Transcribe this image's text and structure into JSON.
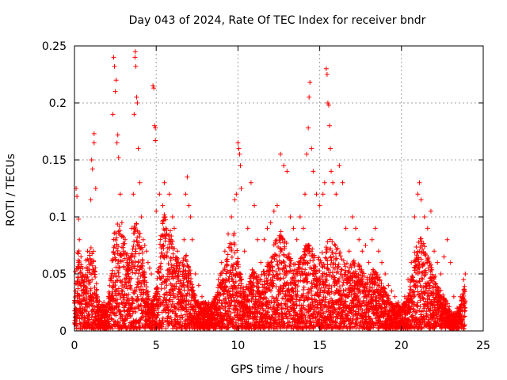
{
  "chart_data": {
    "type": "scatter",
    "title": "Day 043 of 2024, Rate Of TEC Index for receiver bndr",
    "xlabel": "GPS time / hours",
    "ylabel": "ROTI / TECUs",
    "xlim": [
      0,
      25
    ],
    "ylim": [
      0,
      0.25
    ],
    "x_ticks": [
      "0",
      "5",
      "10",
      "15",
      "20",
      "25"
    ],
    "y_ticks": [
      "0",
      "0.05",
      "0.1",
      "0.15",
      "0.2",
      "0.25"
    ],
    "grid": true,
    "marker": "+",
    "colors": {
      "points": "#ff0000",
      "grid": "#a0a0a0",
      "axes": "#000000"
    },
    "series": [
      {
        "name": "",
        "points": [
          [
            0.05,
            0.052
          ],
          [
            0.1,
            0.125
          ],
          [
            0.15,
            0.118
          ],
          [
            0.25,
            0.098
          ],
          [
            0.3,
            0.08
          ],
          [
            0.4,
            0.065
          ],
          [
            0.5,
            0.055
          ],
          [
            0.6,
            0.045
          ],
          [
            0.7,
            0.062
          ],
          [
            0.8,
            0.07
          ],
          [
            0.9,
            0.058
          ],
          [
            1.0,
            0.115
          ],
          [
            1.05,
            0.15
          ],
          [
            1.1,
            0.142
          ],
          [
            1.2,
            0.173
          ],
          [
            1.2,
            0.165
          ],
          [
            1.3,
            0.125
          ],
          [
            1.4,
            0.03
          ],
          [
            1.6,
            0.018
          ],
          [
            1.8,
            0.025
          ],
          [
            2.0,
            0.012
          ],
          [
            2.2,
            0.028
          ],
          [
            2.35,
            0.19
          ],
          [
            2.4,
            0.24
          ],
          [
            2.45,
            0.232
          ],
          [
            2.5,
            0.21
          ],
          [
            2.55,
            0.22
          ],
          [
            2.6,
            0.165
          ],
          [
            2.65,
            0.172
          ],
          [
            2.7,
            0.152
          ],
          [
            2.8,
            0.12
          ],
          [
            2.9,
            0.095
          ],
          [
            3.0,
            0.07
          ],
          [
            3.1,
            0.08
          ],
          [
            3.2,
            0.06
          ],
          [
            3.3,
            0.05
          ],
          [
            3.4,
            0.04
          ],
          [
            3.5,
            0.09
          ],
          [
            3.6,
            0.12
          ],
          [
            3.65,
            0.19
          ],
          [
            3.7,
            0.24
          ],
          [
            3.72,
            0.245
          ],
          [
            3.75,
            0.232
          ],
          [
            3.8,
            0.205
          ],
          [
            3.85,
            0.2
          ],
          [
            3.9,
            0.16
          ],
          [
            4.0,
            0.13
          ],
          [
            4.1,
            0.1
          ],
          [
            4.2,
            0.08
          ],
          [
            4.3,
            0.075
          ],
          [
            4.4,
            0.07
          ],
          [
            4.5,
            0.06
          ],
          [
            4.6,
            0.055
          ],
          [
            4.7,
            0.05
          ],
          [
            4.8,
            0.215
          ],
          [
            4.85,
            0.213
          ],
          [
            4.9,
            0.18
          ],
          [
            4.95,
            0.178
          ],
          [
            4.95,
            0.167
          ],
          [
            5.0,
            0.105
          ],
          [
            5.2,
            0.12
          ],
          [
            5.4,
            0.11
          ],
          [
            5.5,
            0.13
          ],
          [
            5.6,
            0.09
          ],
          [
            5.8,
            0.12
          ],
          [
            6.0,
            0.1
          ],
          [
            6.1,
            0.09
          ],
          [
            6.3,
            0.07
          ],
          [
            6.5,
            0.06
          ],
          [
            6.7,
            0.08
          ],
          [
            6.8,
            0.12
          ],
          [
            6.9,
            0.135
          ],
          [
            7.0,
            0.11
          ],
          [
            7.1,
            0.1
          ],
          [
            7.2,
            0.08
          ],
          [
            7.4,
            0.05
          ],
          [
            7.6,
            0.04
          ],
          [
            7.8,
            0.03
          ],
          [
            8.0,
            0.025
          ],
          [
            8.3,
            0.02
          ],
          [
            8.6,
            0.03
          ],
          [
            8.8,
            0.045
          ],
          [
            9.0,
            0.06
          ],
          [
            9.2,
            0.07
          ],
          [
            9.4,
            0.085
          ],
          [
            9.6,
            0.1
          ],
          [
            9.8,
            0.115
          ],
          [
            9.9,
            0.12
          ],
          [
            10.0,
            0.165
          ],
          [
            10.05,
            0.16
          ],
          [
            10.1,
            0.155
          ],
          [
            10.15,
            0.145
          ],
          [
            10.2,
            0.125
          ],
          [
            10.4,
            0.07
          ],
          [
            10.6,
            0.09
          ],
          [
            10.8,
            0.13
          ],
          [
            11.0,
            0.11
          ],
          [
            11.2,
            0.08
          ],
          [
            11.4,
            0.06
          ],
          [
            11.6,
            0.08
          ],
          [
            11.8,
            0.09
          ],
          [
            12.0,
            0.095
          ],
          [
            12.2,
            0.105
          ],
          [
            12.4,
            0.11
          ],
          [
            12.6,
            0.155
          ],
          [
            12.8,
            0.145
          ],
          [
            13.0,
            0.14
          ],
          [
            13.2,
            0.1
          ],
          [
            13.4,
            0.09
          ],
          [
            13.6,
            0.08
          ],
          [
            13.8,
            0.1
          ],
          [
            14.0,
            0.09
          ],
          [
            14.1,
            0.12
          ],
          [
            14.2,
            0.155
          ],
          [
            14.3,
            0.178
          ],
          [
            14.35,
            0.205
          ],
          [
            14.4,
            0.218
          ],
          [
            14.5,
            0.16
          ],
          [
            14.6,
            0.14
          ],
          [
            14.8,
            0.12
          ],
          [
            15.0,
            0.11
          ],
          [
            15.2,
            0.12
          ],
          [
            15.3,
            0.13
          ],
          [
            15.4,
            0.23
          ],
          [
            15.45,
            0.225
          ],
          [
            15.5,
            0.2
          ],
          [
            15.55,
            0.198
          ],
          [
            15.6,
            0.18
          ],
          [
            15.65,
            0.16
          ],
          [
            15.7,
            0.14
          ],
          [
            15.8,
            0.13
          ],
          [
            16.0,
            0.12
          ],
          [
            16.2,
            0.145
          ],
          [
            16.4,
            0.13
          ],
          [
            16.6,
            0.09
          ],
          [
            16.8,
            0.07
          ],
          [
            17.0,
            0.1
          ],
          [
            17.2,
            0.09
          ],
          [
            17.4,
            0.08
          ],
          [
            17.6,
            0.07
          ],
          [
            17.8,
            0.075
          ],
          [
            18.0,
            0.06
          ],
          [
            18.2,
            0.08
          ],
          [
            18.4,
            0.09
          ],
          [
            18.6,
            0.07
          ],
          [
            18.8,
            0.06
          ],
          [
            19.0,
            0.05
          ],
          [
            19.2,
            0.04
          ],
          [
            19.4,
            0.035
          ],
          [
            19.6,
            0.03
          ],
          [
            19.8,
            0.025
          ],
          [
            20.0,
            0.02
          ],
          [
            20.2,
            0.03
          ],
          [
            20.4,
            0.045
          ],
          [
            20.6,
            0.06
          ],
          [
            20.8,
            0.1
          ],
          [
            21.0,
            0.12
          ],
          [
            21.1,
            0.13
          ],
          [
            21.2,
            0.115
          ],
          [
            21.4,
            0.1
          ],
          [
            21.6,
            0.09
          ],
          [
            21.8,
            0.105
          ],
          [
            22.0,
            0.07
          ],
          [
            22.2,
            0.06
          ],
          [
            22.4,
            0.05
          ],
          [
            22.6,
            0.065
          ],
          [
            22.8,
            0.08
          ],
          [
            23.0,
            0.06
          ],
          [
            23.2,
            0.03
          ],
          [
            23.4,
            0.02
          ],
          [
            23.6,
            0.03
          ],
          [
            23.8,
            0.045
          ],
          [
            23.9,
            0.05
          ]
        ],
        "background_points": {
          "x_range": [
            0.0,
            23.9
          ],
          "count": 5200,
          "envelope": [
            [
              0.0,
              0.02
            ],
            [
              0.2,
              0.065
            ],
            [
              0.4,
              0.05
            ],
            [
              0.6,
              0.035
            ],
            [
              0.8,
              0.055
            ],
            [
              1.0,
              0.065
            ],
            [
              1.2,
              0.06
            ],
            [
              1.4,
              0.025
            ],
            [
              1.6,
              0.02
            ],
            [
              1.8,
              0.02
            ],
            [
              2.0,
              0.018
            ],
            [
              2.2,
              0.04
            ],
            [
              2.4,
              0.075
            ],
            [
              2.6,
              0.085
            ],
            [
              2.8,
              0.08
            ],
            [
              3.0,
              0.07
            ],
            [
              3.2,
              0.065
            ],
            [
              3.4,
              0.06
            ],
            [
              3.6,
              0.075
            ],
            [
              3.8,
              0.085
            ],
            [
              4.0,
              0.075
            ],
            [
              4.2,
              0.06
            ],
            [
              4.4,
              0.035
            ],
            [
              4.6,
              0.025
            ],
            [
              4.8,
              0.02
            ],
            [
              5.0,
              0.03
            ],
            [
              5.2,
              0.065
            ],
            [
              5.4,
              0.085
            ],
            [
              5.6,
              0.09
            ],
            [
              5.8,
              0.08
            ],
            [
              6.0,
              0.07
            ],
            [
              6.2,
              0.06
            ],
            [
              6.4,
              0.05
            ],
            [
              6.6,
              0.05
            ],
            [
              6.8,
              0.06
            ],
            [
              7.0,
              0.05
            ],
            [
              7.2,
              0.035
            ],
            [
              7.4,
              0.025
            ],
            [
              7.6,
              0.02
            ],
            [
              7.8,
              0.02
            ],
            [
              8.0,
              0.02
            ],
            [
              8.2,
              0.02
            ],
            [
              8.4,
              0.02
            ],
            [
              8.6,
              0.025
            ],
            [
              8.8,
              0.035
            ],
            [
              9.0,
              0.045
            ],
            [
              9.2,
              0.05
            ],
            [
              9.4,
              0.06
            ],
            [
              9.6,
              0.07
            ],
            [
              9.8,
              0.075
            ],
            [
              10.0,
              0.06
            ],
            [
              10.2,
              0.04
            ],
            [
              10.4,
              0.03
            ],
            [
              10.6,
              0.035
            ],
            [
              10.8,
              0.045
            ],
            [
              11.0,
              0.045
            ],
            [
              11.2,
              0.04
            ],
            [
              11.4,
              0.04
            ],
            [
              11.6,
              0.045
            ],
            [
              11.8,
              0.05
            ],
            [
              12.0,
              0.055
            ],
            [
              12.2,
              0.065
            ],
            [
              12.4,
              0.07
            ],
            [
              12.6,
              0.075
            ],
            [
              12.8,
              0.07
            ],
            [
              13.0,
              0.065
            ],
            [
              13.2,
              0.055
            ],
            [
              13.4,
              0.05
            ],
            [
              13.6,
              0.05
            ],
            [
              13.8,
              0.055
            ],
            [
              14.0,
              0.06
            ],
            [
              14.2,
              0.065
            ],
            [
              14.4,
              0.065
            ],
            [
              14.6,
              0.06
            ],
            [
              14.8,
              0.055
            ],
            [
              15.0,
              0.055
            ],
            [
              15.2,
              0.06
            ],
            [
              15.4,
              0.065
            ],
            [
              15.6,
              0.07
            ],
            [
              15.8,
              0.07
            ],
            [
              16.0,
              0.065
            ],
            [
              16.2,
              0.06
            ],
            [
              16.4,
              0.055
            ],
            [
              16.6,
              0.05
            ],
            [
              16.8,
              0.05
            ],
            [
              17.0,
              0.055
            ],
            [
              17.2,
              0.05
            ],
            [
              17.4,
              0.05
            ],
            [
              17.6,
              0.045
            ],
            [
              17.8,
              0.04
            ],
            [
              18.0,
              0.04
            ],
            [
              18.2,
              0.045
            ],
            [
              18.4,
              0.045
            ],
            [
              18.6,
              0.04
            ],
            [
              18.8,
              0.035
            ],
            [
              19.0,
              0.03
            ],
            [
              19.2,
              0.025
            ],
            [
              19.4,
              0.02
            ],
            [
              19.6,
              0.02
            ],
            [
              19.8,
              0.018
            ],
            [
              20.0,
              0.018
            ],
            [
              20.2,
              0.02
            ],
            [
              20.4,
              0.025
            ],
            [
              20.6,
              0.04
            ],
            [
              20.8,
              0.06
            ],
            [
              21.0,
              0.07
            ],
            [
              21.2,
              0.07
            ],
            [
              21.4,
              0.065
            ],
            [
              21.6,
              0.06
            ],
            [
              21.8,
              0.055
            ],
            [
              22.0,
              0.045
            ],
            [
              22.2,
              0.035
            ],
            [
              22.4,
              0.03
            ],
            [
              22.6,
              0.025
            ],
            [
              22.8,
              0.02
            ],
            [
              23.0,
              0.015
            ],
            [
              23.2,
              0.012
            ],
            [
              23.4,
              0.012
            ],
            [
              23.6,
              0.02
            ],
            [
              23.8,
              0.03
            ],
            [
              23.9,
              0.035
            ]
          ]
        }
      }
    ]
  }
}
